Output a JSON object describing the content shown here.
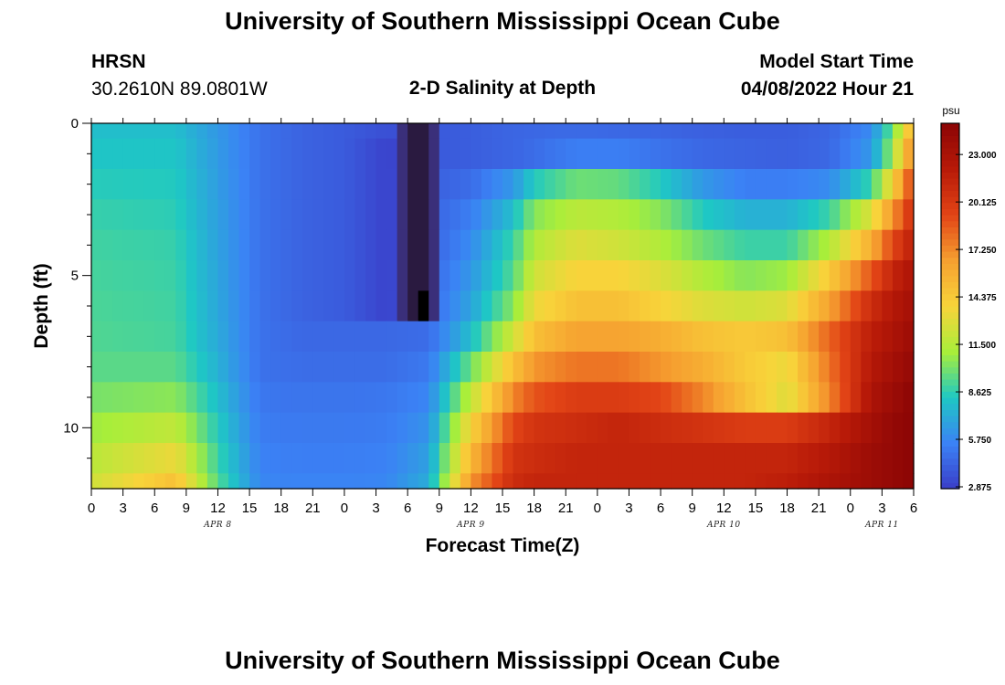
{
  "page": {
    "title": "University of Southern Mississippi Ocean Cube",
    "footer_title": "University of Southern Mississippi Ocean Cube",
    "station": "HRSN",
    "coords": "30.2610N  89.0801W",
    "subtitle": "2-D Salinity at Depth",
    "model_label": "Model Start Time",
    "model_time": "04/08/2022 Hour 21"
  },
  "chart_data": {
    "type": "heatmap",
    "title": "2-D Salinity at Depth",
    "xlabel": "Forecast Time(Z)",
    "ylabel": "Depth (ft)",
    "units": "psu",
    "x_ticks": [
      "0",
      "3",
      "6",
      "9",
      "12",
      "15",
      "18",
      "21",
      "0",
      "3",
      "6",
      "9",
      "12",
      "15",
      "18",
      "21",
      "0",
      "3",
      "6",
      "9",
      "12",
      "15",
      "18",
      "21",
      "0",
      "3",
      "6"
    ],
    "x_range_hours": [
      0,
      78
    ],
    "date_labels": [
      {
        "label": "APR 8",
        "hour": 12
      },
      {
        "label": "APR 9",
        "hour": 36
      },
      {
        "label": "APR 10",
        "hour": 60
      },
      {
        "label": "APR 11",
        "hour": 75
      }
    ],
    "y_range_ft": [
      0,
      12
    ],
    "y_major_ticks": [
      0,
      5,
      10
    ],
    "y_minor_ticks": [
      1,
      2,
      3,
      4,
      6,
      7,
      8,
      9,
      11
    ],
    "colorbar": {
      "range": [
        2.875,
        25.0
      ],
      "ticks": [
        "2.875",
        "5.750",
        "8.625",
        "11.500",
        "14.375",
        "17.250",
        "20.125",
        "23.000"
      ]
    },
    "depth_layers_ft": [
      0,
      0.5,
      1.5,
      2.5,
      3.5,
      4.5,
      5.5,
      6.5,
      7.5,
      8.5,
      9.5,
      10.5,
      11.5
    ],
    "time_keys_hours": [
      0,
      8,
      12,
      16,
      20,
      24,
      28,
      32,
      36,
      40,
      42,
      46,
      50,
      54,
      58,
      62,
      66,
      70,
      74,
      76,
      78
    ],
    "salinity_psu": [
      [
        8.0,
        8.0,
        6.5,
        5.0,
        4.4,
        4.1,
        3.6,
        4.0,
        4.2,
        4.5,
        4.6,
        4.7,
        4.6,
        4.5,
        4.3,
        4.2,
        4.2,
        4.5,
        6.0,
        10.0,
        16.0
      ],
      [
        8.3,
        8.3,
        6.6,
        5.0,
        4.4,
        4.1,
        3.1,
        4.0,
        4.2,
        4.5,
        4.8,
        5.5,
        5.5,
        5.0,
        4.6,
        4.4,
        4.3,
        4.6,
        6.5,
        11.0,
        18.0
      ],
      [
        8.6,
        8.5,
        6.7,
        5.0,
        4.4,
        4.1,
        3.1,
        4.2,
        4.8,
        6.5,
        8.5,
        10.0,
        9.8,
        8.5,
        6.5,
        5.5,
        5.5,
        6.0,
        9.0,
        14.0,
        20.0
      ],
      [
        8.9,
        8.7,
        6.8,
        5.0,
        4.4,
        4.1,
        3.1,
        4.3,
        5.5,
        8.0,
        10.5,
        11.8,
        11.5,
        10.5,
        8.5,
        7.5,
        7.5,
        9.0,
        13.0,
        17.0,
        21.0
      ],
      [
        9.1,
        8.9,
        6.9,
        5.0,
        4.4,
        4.1,
        3.1,
        4.3,
        6.0,
        9.0,
        11.5,
        13.0,
        12.5,
        11.5,
        10.0,
        9.0,
        9.0,
        11.5,
        16.0,
        19.5,
        22.0
      ],
      [
        9.2,
        9.0,
        7.0,
        5.0,
        4.4,
        4.1,
        3.1,
        4.4,
        6.5,
        9.5,
        12.5,
        14.0,
        14.0,
        13.0,
        11.5,
        10.5,
        11.0,
        14.5,
        19.0,
        21.5,
        23.0
      ],
      [
        9.3,
        9.1,
        7.1,
        5.0,
        4.4,
        4.1,
        3.1,
        4.5,
        7.0,
        10.5,
        13.5,
        15.0,
        15.0,
        14.0,
        13.0,
        12.5,
        13.0,
        16.5,
        21.0,
        22.5,
        23.5
      ],
      [
        9.4,
        9.2,
        7.2,
        5.0,
        4.6,
        4.6,
        4.6,
        4.8,
        8.0,
        12.5,
        15.0,
        16.5,
        16.5,
        16.0,
        15.0,
        14.5,
        15.0,
        18.5,
        22.0,
        23.0,
        24.0
      ],
      [
        9.6,
        9.6,
        7.5,
        5.0,
        4.8,
        4.8,
        4.8,
        5.3,
        10.0,
        15.0,
        17.0,
        18.0,
        18.0,
        17.0,
        16.0,
        14.5,
        13.5,
        18.0,
        22.5,
        23.5,
        24.5
      ],
      [
        10.2,
        10.6,
        8.0,
        5.2,
        5.1,
        5.1,
        5.2,
        5.8,
        12.0,
        17.5,
        19.0,
        20.0,
        20.0,
        19.5,
        17.5,
        15.0,
        13.0,
        17.5,
        23.0,
        24.0,
        25.0
      ],
      [
        11.0,
        12.0,
        8.5,
        5.4,
        5.3,
        5.3,
        5.4,
        6.3,
        14.0,
        19.5,
        20.5,
        21.0,
        21.5,
        21.0,
        20.5,
        20.0,
        20.0,
        21.5,
        23.5,
        24.5,
        25.0
      ],
      [
        11.8,
        13.5,
        9.0,
        5.6,
        5.5,
        5.5,
        5.6,
        6.8,
        15.5,
        20.5,
        21.0,
        21.5,
        21.5,
        21.5,
        21.5,
        21.5,
        21.5,
        22.5,
        24.0,
        24.5,
        25.0
      ],
      [
        12.5,
        15.0,
        9.5,
        5.8,
        5.7,
        5.7,
        5.8,
        7.3,
        17.0,
        21.0,
        21.5,
        21.5,
        21.5,
        21.5,
        21.5,
        21.5,
        22.0,
        23.0,
        24.0,
        24.5,
        25.0
      ]
    ]
  },
  "colors": {
    "scale": [
      "#3a3dc8",
      "#3b82f5",
      "#1ec8c4",
      "#a8ee3a",
      "#f8d43a",
      "#f6a030",
      "#e24416",
      "#b81a08",
      "#8c0505"
    ],
    "deep_column": "#2a1a40",
    "marker": "#000000"
  }
}
